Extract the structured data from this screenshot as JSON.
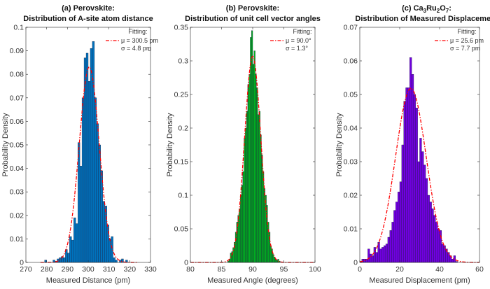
{
  "chart_data": [
    {
      "type": "bar",
      "title_lines": [
        [
          "(a) Perovskite:"
        ],
        [
          "Distribution of A-site atom distance"
        ]
      ],
      "xlabel": "Measured Distance (pm)",
      "ylabel": "Probability Density",
      "xlim": [
        270,
        330
      ],
      "ylim": [
        0,
        0.1
      ],
      "xticks": [
        270,
        280,
        290,
        300,
        310,
        320,
        330
      ],
      "yticks": [
        0,
        0.01,
        0.02,
        0.03,
        0.04,
        0.05,
        0.06,
        0.07,
        0.08,
        0.09,
        0.1
      ],
      "ytick_labels": [
        "0",
        "0.01",
        "0.02",
        "0.03",
        "0.04",
        "0.05",
        "0.06",
        "0.07",
        "0.08",
        "0.09",
        "0.1"
      ],
      "bar_color": "#0072BD",
      "bin_width": 1,
      "bin_edges_start": [
        279,
        280,
        281,
        282,
        283,
        284,
        285,
        286,
        287,
        288,
        289,
        290,
        291,
        292,
        293,
        294,
        295,
        296,
        297,
        298,
        299,
        300,
        301,
        302,
        303,
        304,
        305,
        306,
        307,
        308,
        309,
        310,
        311,
        312,
        313,
        314,
        315,
        316,
        317,
        318
      ],
      "values": [
        0.001,
        0,
        0,
        0,
        0.001,
        0.0005,
        0.0015,
        0.002,
        0.0025,
        0.002,
        0.0055,
        0.004,
        0.011,
        0.0095,
        0.019,
        0.0165,
        0.051,
        0.041,
        0.07,
        0.087,
        0.089,
        0.077,
        0.091,
        0.094,
        0.07,
        0.059,
        0.05,
        0.039,
        0.026,
        0.024,
        0.016,
        0.01,
        0.011,
        0.002,
        0.001,
        0,
        0.001,
        0.0015,
        0,
        0.001
      ],
      "fit": {
        "type": "normal",
        "mu": 300.5,
        "sigma": 4.8,
        "color": "#FF0000",
        "range": [
          277,
          324
        ]
      },
      "legend": {
        "heading": "Fitting:",
        "lines": [
          "μ = 300.5 pm",
          "σ = 4.8 pm"
        ],
        "placement": "top-right"
      }
    },
    {
      "type": "bar",
      "title_lines": [
        [
          "(b) Perovskite:"
        ],
        [
          "Distribution of unit cell vector angles"
        ]
      ],
      "xlabel": "Measured Angle (degrees)",
      "ylabel": "Probability Density",
      "xlim": [
        80,
        100
      ],
      "ylim": [
        0,
        0.35
      ],
      "xticks": [
        80,
        85,
        90,
        95,
        100
      ],
      "yticks": [
        0,
        0.05,
        0.1,
        0.15,
        0.2,
        0.25,
        0.3,
        0.35
      ],
      "ytick_labels": [
        "0",
        "0.05",
        "0.1",
        "0.15",
        "0.2",
        "0.25",
        "0.3",
        "0.35"
      ],
      "bar_color": "#00B020",
      "bin_width": 0.2,
      "bin_edges_start": [
        86.0,
        86.2,
        86.4,
        86.6,
        86.8,
        87.0,
        87.2,
        87.4,
        87.6,
        87.8,
        88.0,
        88.2,
        88.4,
        88.6,
        88.8,
        89.0,
        89.2,
        89.4,
        89.6,
        89.8,
        90.0,
        90.2,
        90.4,
        90.6,
        90.8,
        91.0,
        91.2,
        91.4,
        91.6,
        91.8,
        92.0,
        92.2,
        92.4,
        92.6,
        92.8,
        93.0,
        93.2,
        93.4,
        93.6,
        93.8,
        94.0,
        94.2
      ],
      "values": [
        0.002,
        0.005,
        0.014,
        0.016,
        0.022,
        0.03,
        0.045,
        0.06,
        0.07,
        0.08,
        0.1,
        0.115,
        0.135,
        0.185,
        0.2,
        0.225,
        0.265,
        0.28,
        0.335,
        0.345,
        0.295,
        0.315,
        0.28,
        0.26,
        0.22,
        0.225,
        0.19,
        0.16,
        0.135,
        0.11,
        0.1,
        0.085,
        0.06,
        0.045,
        0.025,
        0.02,
        0.012,
        0.008,
        0.005,
        0.003,
        0.005,
        0.002
      ],
      "fit": {
        "type": "normal",
        "mu": 90.0,
        "sigma": 1.3,
        "color": "#FF0000",
        "range": [
          80,
          100
        ]
      },
      "legend": {
        "heading": "Fitting:",
        "lines": [
          "μ = 90.0°",
          "σ = 1.3°"
        ],
        "placement": "top-right"
      }
    },
    {
      "type": "bar",
      "title_lines": [
        [
          "(c) Ca",
          "3",
          "Ru",
          "2",
          "O",
          "7",
          ":"
        ],
        [
          "Distribution of Measured Displacement"
        ]
      ],
      "xlabel": "Measured Displacement (pm)",
      "ylabel": "Probability Density",
      "xlim": [
        0,
        60
      ],
      "ylim": [
        0,
        0.07
      ],
      "xticks": [
        0,
        20,
        40,
        60
      ],
      "yticks": [
        0,
        0.01,
        0.02,
        0.03,
        0.04,
        0.05,
        0.06,
        0.07
      ],
      "ytick_labels": [
        "0",
        "0.01",
        "0.02",
        "0.03",
        "0.04",
        "0.05",
        "0.06",
        "0.07"
      ],
      "bar_color": "#7000E0",
      "bin_width": 1,
      "bin_edges_start": [
        0,
        1,
        2,
        3,
        4,
        5,
        6,
        7,
        8,
        9,
        10,
        11,
        12,
        13,
        14,
        15,
        16,
        17,
        18,
        19,
        20,
        21,
        22,
        23,
        24,
        25,
        26,
        27,
        28,
        29,
        30,
        31,
        32,
        33,
        34,
        35,
        36,
        37,
        38,
        39,
        40,
        41,
        42,
        43,
        44,
        45,
        46,
        47,
        48
      ],
      "values": [
        0.0003,
        0.001,
        0.001,
        0.001,
        0.004,
        0.0025,
        0.002,
        0.0045,
        0.003,
        0.006,
        0.004,
        0.0045,
        0.005,
        0.0055,
        0.0075,
        0.0095,
        0.012,
        0.0155,
        0.018,
        0.021,
        0.024,
        0.035,
        0.048,
        0.052,
        0.052,
        0.061,
        0.056,
        0.05,
        0.046,
        0.03,
        0.037,
        0.033,
        0.029,
        0.025,
        0.02,
        0.018,
        0.016,
        0.014,
        0.012,
        0.01,
        0.0095,
        0.0055,
        0.005,
        0.004,
        0.003,
        0.002,
        0.001,
        0.002,
        0.0003
      ],
      "fit": {
        "type": "normal",
        "mu": 25.6,
        "sigma": 7.7,
        "color": "#FF0000",
        "range": [
          0,
          60
        ]
      },
      "legend": {
        "heading": "Fitting:",
        "lines": [
          "μ = 25.6 pm",
          "σ = 7.7 pm"
        ],
        "placement": "top-right"
      }
    }
  ]
}
